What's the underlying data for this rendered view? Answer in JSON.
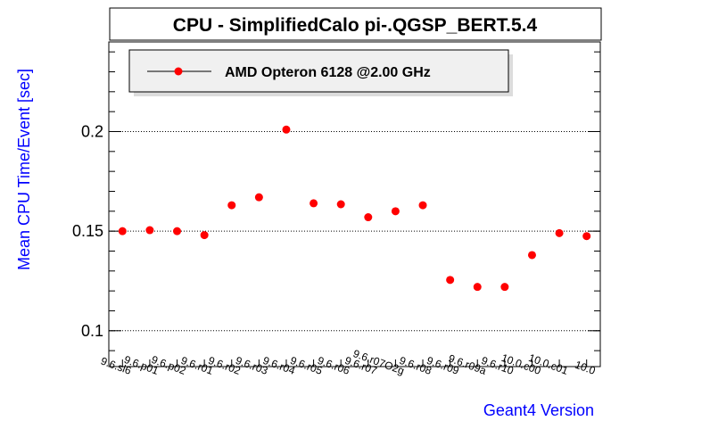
{
  "chart_data": {
    "type": "scatter",
    "title": "CPU - SimplifiedCalo pi-.QGSP_BERT.5.4",
    "xlabel": "Geant4 Version",
    "ylabel": "Mean CPU Time/Event [sec]",
    "categories": [
      "9.6.sl6",
      "9.6.p01",
      "9.6.p02",
      "9.6.r01",
      "9.6.r02",
      "9.6.r03",
      "9.6.r04",
      "9.6.r05",
      "9.6.r06",
      "9.6.r07",
      "9.6.r07O2g",
      "9.6.r08",
      "9.6.r09",
      "9.6.r09a",
      "9.6.r10",
      "10.0.c00",
      "10.0.c01",
      "10.0"
    ],
    "series": [
      {
        "name": "AMD Opteron 6128 @2.00 GHz",
        "color": "#ff0000",
        "values": [
          0.15,
          0.1505,
          0.15,
          0.148,
          0.163,
          0.167,
          0.201,
          0.164,
          0.1635,
          0.157,
          0.16,
          0.163,
          0.1255,
          0.122,
          0.122,
          0.138,
          0.149,
          0.1475
        ]
      }
    ],
    "yticks": [
      0.1,
      0.15,
      0.2
    ],
    "ytick_labels": [
      "0.1",
      "0.15",
      "0.2"
    ],
    "ylim": [
      0.082,
      0.245
    ],
    "grid": "horizontal dotted",
    "legend_position": "top-left"
  }
}
